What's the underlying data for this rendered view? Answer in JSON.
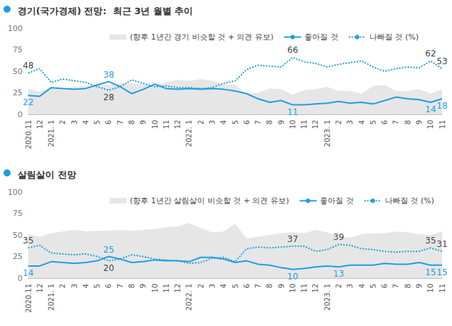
{
  "chart_data": [
    {
      "type": "line",
      "title": "경기(국가경제) 전망:  최근 3년 월별 추이",
      "categories": [
        "2020.11",
        "12",
        "2021. 1",
        "2",
        "3",
        "4",
        "5",
        "6",
        "7",
        "8",
        "9",
        "10",
        "11",
        "12",
        "2022. 1",
        "2",
        "3",
        "4",
        "5",
        "6",
        "7",
        "8",
        "9",
        "10",
        "11",
        "12",
        "2023. 1",
        "2",
        "3",
        "4",
        "5",
        "6",
        "7",
        "8",
        "9",
        "10",
        "11"
      ],
      "series": [
        {
          "name": "(향후 1년간 경기 비슷할 것 + 의견 유보)",
          "type": "area",
          "color": "#e6e6e6",
          "values": [
            30,
            26,
            32,
            29,
            32,
            33,
            34,
            34,
            36,
            36,
            35,
            33,
            37,
            40,
            39,
            41,
            39,
            35,
            34,
            24,
            25,
            30,
            29,
            23,
            28,
            29,
            32,
            27,
            27,
            24,
            33,
            34,
            27,
            27,
            29,
            24,
            29
          ]
        },
        {
          "name": "좋아질 것",
          "type": "line",
          "color": "#1e9ee0",
          "line_style": "solid",
          "data_labels": true,
          "values": [
            22,
            21,
            31,
            30,
            29,
            30,
            34,
            38,
            32,
            24,
            29,
            35,
            30,
            29,
            30,
            29,
            30,
            29,
            27,
            24,
            18,
            14,
            16,
            11,
            11,
            12,
            13,
            15,
            13,
            14,
            12,
            16,
            20,
            18,
            17,
            14,
            18
          ],
          "value_labels": [
            "22",
            null,
            null,
            null,
            null,
            null,
            null,
            "38",
            null,
            null,
            null,
            null,
            null,
            null,
            null,
            null,
            null,
            null,
            null,
            null,
            null,
            null,
            null,
            "11",
            null,
            null,
            null,
            null,
            null,
            null,
            null,
            null,
            null,
            null,
            null,
            "14",
            "18"
          ]
        },
        {
          "name": "나빠질 것 (%)",
          "type": "line",
          "color": "#1e9ee0",
          "line_style": "dotted",
          "data_labels": true,
          "values": [
            48,
            53,
            37,
            41,
            39,
            37,
            32,
            28,
            32,
            40,
            36,
            32,
            33,
            31,
            31,
            30,
            31,
            36,
            39,
            52,
            57,
            56,
            55,
            66,
            61,
            59,
            55,
            58,
            60,
            62,
            55,
            50,
            53,
            55,
            54,
            62,
            53
          ],
          "value_labels": [
            "48",
            null,
            null,
            null,
            null,
            null,
            null,
            "28",
            null,
            null,
            null,
            null,
            null,
            null,
            null,
            null,
            null,
            null,
            null,
            null,
            null,
            null,
            null,
            "66",
            null,
            null,
            null,
            null,
            null,
            null,
            null,
            null,
            null,
            null,
            null,
            "62",
            "53"
          ]
        }
      ],
      "ylim": [
        0,
        100
      ],
      "yticks": [
        0,
        25,
        50,
        75,
        100
      ],
      "grid": false,
      "legend": "top"
    },
    {
      "type": "line",
      "title": "살림살이 전망",
      "categories": [
        "2020.11",
        "12",
        "2021. 1",
        "2",
        "3",
        "4",
        "5",
        "6",
        "7",
        "8",
        "9",
        "10",
        "11",
        "12",
        "2022. 1",
        "2",
        "3",
        "4",
        "5",
        "6",
        "7",
        "8",
        "9",
        "10",
        "11",
        "12",
        "2023. 1",
        "2",
        "3",
        "4",
        "5",
        "6",
        "7",
        "8",
        "9",
        "10",
        "11"
      ],
      "series": [
        {
          "name": "(향후 1년간 살림살이 비슷할 것 + 의견 유보)",
          "type": "area",
          "color": "#e6e6e6",
          "values": [
            51,
            48,
            52,
            54,
            56,
            54,
            55,
            55,
            56,
            55,
            56,
            57,
            59,
            60,
            64,
            58,
            53,
            54,
            63,
            46,
            48,
            50,
            52,
            53,
            52,
            56,
            53,
            48,
            47,
            51,
            52,
            52,
            54,
            53,
            51,
            50,
            54
          ]
        },
        {
          "name": "좋아질 것",
          "type": "line",
          "color": "#1e9ee0",
          "line_style": "solid",
          "data_labels": true,
          "values": [
            14,
            14,
            19,
            18,
            17,
            18,
            20,
            25,
            22,
            18,
            19,
            21,
            20,
            20,
            19,
            24,
            24,
            22,
            18,
            20,
            16,
            15,
            12,
            10,
            11,
            13,
            14,
            13,
            15,
            15,
            15,
            17,
            16,
            16,
            18,
            15,
            15
          ],
          "value_labels": [
            "14",
            null,
            null,
            null,
            null,
            null,
            null,
            "25",
            null,
            null,
            null,
            null,
            null,
            null,
            null,
            null,
            null,
            null,
            null,
            null,
            null,
            null,
            null,
            "10",
            null,
            null,
            null,
            "13",
            null,
            null,
            null,
            null,
            null,
            null,
            null,
            "15",
            "15"
          ]
        },
        {
          "name": "나빠질 것 (%)",
          "type": "line",
          "color": "#1e9ee0",
          "line_style": "dotted",
          "data_labels": true,
          "values": [
            35,
            38,
            29,
            28,
            27,
            28,
            25,
            20,
            22,
            27,
            25,
            22,
            21,
            20,
            17,
            18,
            23,
            24,
            19,
            34,
            36,
            35,
            36,
            37,
            37,
            31,
            33,
            39,
            38,
            34,
            33,
            31,
            30,
            31,
            31,
            35,
            31
          ],
          "value_labels": [
            "35",
            null,
            null,
            null,
            null,
            null,
            null,
            "20",
            null,
            null,
            null,
            null,
            null,
            null,
            null,
            null,
            null,
            null,
            null,
            null,
            null,
            null,
            null,
            "37",
            null,
            null,
            null,
            "39",
            null,
            null,
            null,
            null,
            null,
            null,
            null,
            "35",
            "31"
          ]
        }
      ],
      "ylim": [
        0,
        100
      ],
      "yticks": [
        0,
        25,
        50,
        75,
        100
      ],
      "grid": false,
      "legend": "top"
    }
  ]
}
